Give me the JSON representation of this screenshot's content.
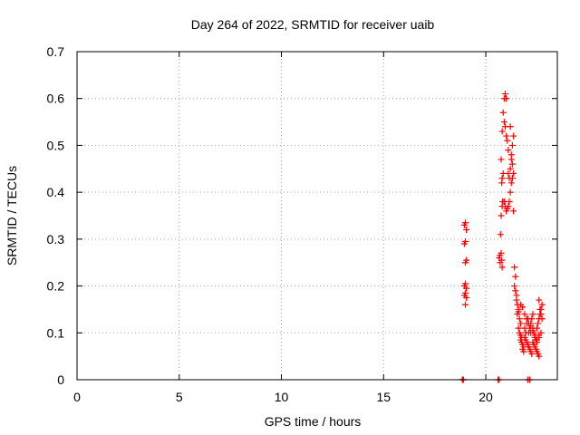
{
  "chart_data": {
    "type": "scatter",
    "title": "Day 264 of 2022, SRMTID for receiver uaib",
    "xlabel": "GPS time / hours",
    "ylabel": "SRMTID / TECUs",
    "xlim": [
      0,
      23.5
    ],
    "ylim": [
      0,
      0.7
    ],
    "x_ticks": [
      0,
      5,
      10,
      15,
      20
    ],
    "x_tick_labels": [
      "0",
      "5",
      "10",
      "15",
      "20"
    ],
    "y_ticks": [
      0,
      0.1,
      0.2,
      0.3,
      0.4,
      0.5,
      0.6,
      0.7
    ],
    "y_tick_labels": [
      "0",
      "0.1",
      "0.2",
      "0.3",
      "0.4",
      "0.5",
      "0.6",
      "0.7"
    ],
    "grid": true,
    "marker": "+",
    "color": "#ff0000",
    "series": [
      {
        "name": "SRMTID",
        "x": [
          18.85,
          18.9,
          18.95,
          19.0,
          19.05,
          18.95,
          19.0,
          19.05,
          19.0,
          18.95,
          19.0,
          19.05,
          19.0,
          18.95,
          19.05,
          19.0,
          18.85,
          18.9,
          20.65,
          20.68,
          20.7,
          20.75,
          20.78,
          20.8,
          20.72,
          20.75,
          20.8,
          20.82,
          20.78,
          20.8,
          20.85,
          20.75,
          20.8,
          20.85,
          20.9,
          20.95,
          21.0,
          20.9,
          20.95,
          21.0,
          21.05,
          21.1,
          20.9,
          20.95,
          21.0,
          21.05,
          21.1,
          21.15,
          21.2,
          21.25,
          21.1,
          21.15,
          21.2,
          21.25,
          21.3,
          21.35,
          21.2,
          21.25,
          21.3,
          21.35,
          21.3,
          21.35,
          21.4,
          21.45,
          21.4,
          21.45,
          21.5,
          21.5,
          21.55,
          21.6,
          21.55,
          21.6,
          21.65,
          21.7,
          21.6,
          21.65,
          21.7,
          21.75,
          21.7,
          21.75,
          21.8,
          21.85,
          21.8,
          21.85,
          21.9,
          21.95,
          22.0,
          22.05,
          21.9,
          21.95,
          22.0,
          22.05,
          22.1,
          22.15,
          22.2,
          22.25,
          22.1,
          22.15,
          22.2,
          22.25,
          22.3,
          22.35,
          22.4,
          22.45,
          22.3,
          22.35,
          22.4,
          22.45,
          22.5,
          22.55,
          22.6,
          22.5,
          22.55,
          22.6,
          22.65,
          22.7,
          22.75,
          22.6,
          22.65,
          22.7,
          22.75,
          22.2,
          22.3,
          22.4,
          22.5,
          22.6,
          21.7,
          21.8,
          21.9,
          22.0,
          22.1,
          22.2,
          22.3,
          22.4,
          22.5,
          22.6,
          22.7,
          22.05,
          20.6,
          20.65,
          22.15
        ],
        "y": [
          0.0,
          0.0,
          0.33,
          0.335,
          0.32,
          0.29,
          0.295,
          0.255,
          0.25,
          0.2,
          0.205,
          0.195,
          0.185,
          0.18,
          0.175,
          0.16,
          0.0,
          0.0,
          0.26,
          0.265,
          0.25,
          0.27,
          0.255,
          0.24,
          0.31,
          0.35,
          0.37,
          0.38,
          0.42,
          0.43,
          0.44,
          0.47,
          0.53,
          0.57,
          0.6,
          0.61,
          0.6,
          0.55,
          0.54,
          0.52,
          0.51,
          0.49,
          0.38,
          0.37,
          0.36,
          0.365,
          0.37,
          0.38,
          0.4,
          0.42,
          0.44,
          0.43,
          0.45,
          0.48,
          0.5,
          0.52,
          0.54,
          0.47,
          0.46,
          0.44,
          0.43,
          0.36,
          0.24,
          0.22,
          0.2,
          0.19,
          0.18,
          0.17,
          0.16,
          0.15,
          0.14,
          0.145,
          0.13,
          0.12,
          0.11,
          0.1,
          0.095,
          0.09,
          0.085,
          0.08,
          0.075,
          0.07,
          0.065,
          0.06,
          0.09,
          0.1,
          0.12,
          0.13,
          0.11,
          0.085,
          0.08,
          0.075,
          0.07,
          0.065,
          0.06,
          0.055,
          0.1,
          0.11,
          0.12,
          0.13,
          0.14,
          0.1,
          0.09,
          0.085,
          0.08,
          0.075,
          0.07,
          0.065,
          0.06,
          0.055,
          0.05,
          0.11,
          0.12,
          0.13,
          0.14,
          0.15,
          0.16,
          0.17,
          0.15,
          0.14,
          0.13,
          0.1,
          0.11,
          0.09,
          0.08,
          0.095,
          0.16,
          0.155,
          0.14,
          0.13,
          0.12,
          0.115,
          0.105,
          0.095,
          0.085,
          0.09,
          0.1,
          0.0,
          0.0,
          0.0,
          0.0
        ]
      }
    ]
  }
}
